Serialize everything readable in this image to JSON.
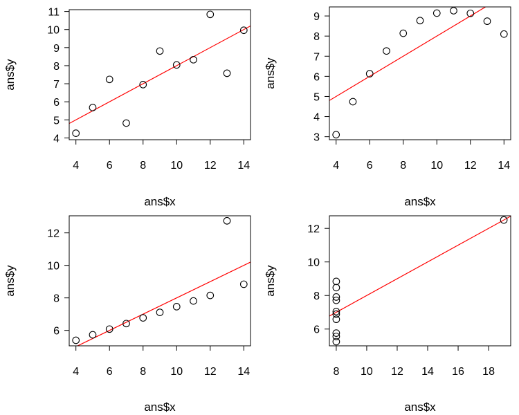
{
  "chart_data": [
    {
      "type": "scatter",
      "xlabel": "ans$x",
      "ylabel": "ans$y",
      "xlim": [
        3.6,
        14.4
      ],
      "ylim": [
        3.9,
        11.1
      ],
      "xticks": [
        4,
        6,
        8,
        10,
        12,
        14
      ],
      "yticks": [
        4,
        5,
        6,
        7,
        8,
        9,
        10,
        11
      ],
      "x": [
        10,
        8,
        13,
        9,
        11,
        14,
        6,
        4,
        12,
        7,
        5
      ],
      "y": [
        8.04,
        6.95,
        7.58,
        8.81,
        8.33,
        9.96,
        7.24,
        4.26,
        10.84,
        4.82,
        5.68
      ],
      "fit_line": {
        "intercept": 3.0,
        "slope": 0.5,
        "color": "#ff0000"
      }
    },
    {
      "type": "scatter",
      "xlabel": "ans$x",
      "ylabel": "ans$y",
      "xlim": [
        3.6,
        14.4
      ],
      "ylim": [
        2.85,
        9.45
      ],
      "xticks": [
        4,
        6,
        8,
        10,
        12,
        14
      ],
      "yticks": [
        3,
        4,
        5,
        6,
        7,
        8,
        9
      ],
      "x": [
        10,
        8,
        13,
        9,
        11,
        14,
        6,
        4,
        12,
        7,
        5
      ],
      "y": [
        9.14,
        8.14,
        8.74,
        8.77,
        9.26,
        8.1,
        6.13,
        3.1,
        9.13,
        7.26,
        4.74
      ],
      "fit_line": {
        "intercept": 3.0,
        "slope": 0.5,
        "color": "#ff0000"
      }
    },
    {
      "type": "scatter",
      "xlabel": "ans$x",
      "ylabel": "ans$y",
      "xlim": [
        3.6,
        14.4
      ],
      "ylim": [
        5.05,
        13.05
      ],
      "xticks": [
        4,
        6,
        8,
        10,
        12,
        14
      ],
      "yticks": [
        6,
        8,
        10,
        12
      ],
      "x": [
        10,
        8,
        13,
        9,
        11,
        14,
        6,
        4,
        12,
        7,
        5
      ],
      "y": [
        7.46,
        6.77,
        12.74,
        7.11,
        7.81,
        8.84,
        6.08,
        5.39,
        8.15,
        6.42,
        5.73
      ],
      "fit_line": {
        "intercept": 3.0,
        "slope": 0.5,
        "color": "#ff0000"
      }
    },
    {
      "type": "scatter",
      "xlabel": "ans$x",
      "ylabel": "ans$y",
      "xlim": [
        7.55,
        19.45
      ],
      "ylim": [
        5.0,
        12.75
      ],
      "xticks": [
        8,
        10,
        12,
        14,
        16,
        18
      ],
      "yticks": [
        6,
        8,
        10,
        12
      ],
      "x": [
        8,
        8,
        8,
        8,
        8,
        8,
        8,
        19,
        8,
        8,
        8
      ],
      "y": [
        6.58,
        5.76,
        7.71,
        8.84,
        8.47,
        7.04,
        5.25,
        12.5,
        5.56,
        7.91,
        6.89
      ],
      "fit_line": {
        "intercept": 3.0,
        "slope": 0.5,
        "color": "#ff0000"
      }
    }
  ]
}
